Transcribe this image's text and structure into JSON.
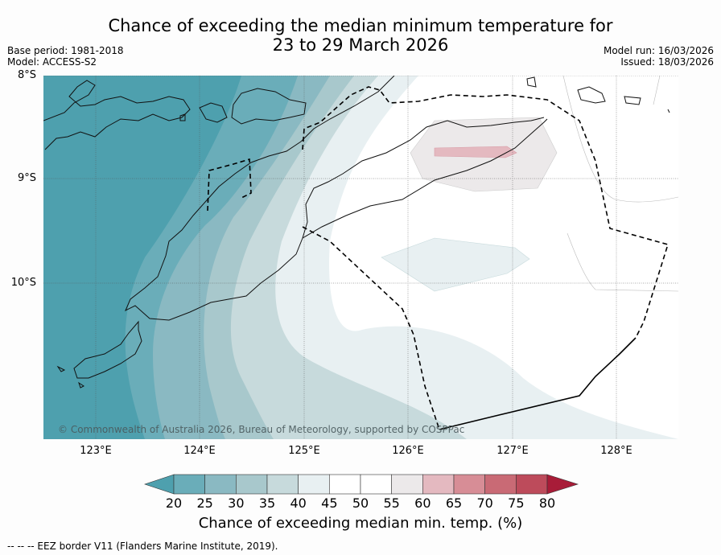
{
  "title": {
    "line1": "Chance of exceeding the median minimum temperature for",
    "line2": "23 to 29 March 2026"
  },
  "meta_left": {
    "base_period": "Base period: 1981-2018",
    "model": "Model: ACCESS-S2"
  },
  "meta_right": {
    "model_run": "Model run: 16/03/2026",
    "issued": "Issued: 18/03/2026"
  },
  "map": {
    "lat_labels": [
      "8°S",
      "9°S",
      "10°S"
    ],
    "lon_labels": [
      "123°E",
      "124°E",
      "125°E",
      "126°E",
      "127°E",
      "128°E"
    ],
    "copyright": "© Commonwealth of Australia 2026, Bureau of Meteorology, supported by COSPPac"
  },
  "colorbar": {
    "ticks": [
      "20",
      "25",
      "30",
      "35",
      "40",
      "45",
      "50",
      "55",
      "60",
      "65",
      "70",
      "75",
      "80"
    ],
    "colors": [
      "#4ea0ae",
      "#6aadb9",
      "#8ab9c2",
      "#a8c8cc",
      "#c7dadc",
      "#e8f0f2",
      "#ffffff",
      "#ffffff",
      "#ece9ea",
      "#e4b9c0",
      "#d78d96",
      "#c96a75",
      "#bd4b5b",
      "#a81c38"
    ],
    "label": "Chance of exceeding median min. temp. (%)"
  },
  "footnote": "-- -- -- EEZ border V11 (Flanders Marine Institute, 2019)."
}
